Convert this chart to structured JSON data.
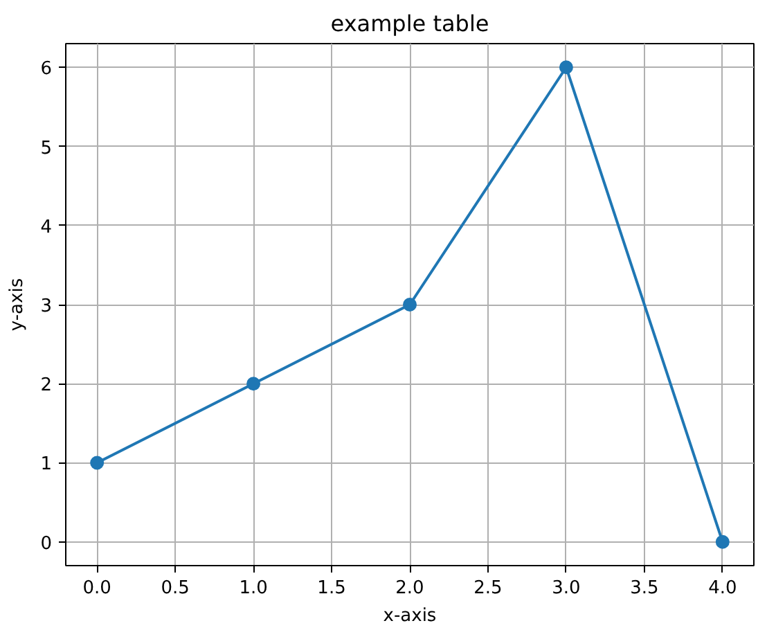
{
  "chart_data": {
    "type": "line",
    "title": "example table",
    "xlabel": "x-axis",
    "ylabel": "y-axis",
    "x": [
      0,
      1,
      2,
      3,
      4
    ],
    "series": [
      {
        "color": "#1f77b4",
        "values": [
          1,
          2,
          3,
          6,
          0
        ]
      }
    ],
    "xlim": [
      -0.2,
      4.2
    ],
    "ylim": [
      -0.3,
      6.3
    ],
    "xticks": [
      {
        "value": 0,
        "label": "0.0"
      },
      0.5,
      {
        "value": 1,
        "label": "1.0"
      },
      1.5,
      {
        "value": 2,
        "label": "2.0"
      },
      2.5,
      {
        "value": 3,
        "label": "3.0"
      },
      3.5,
      {
        "value": 4,
        "label": "4.0"
      }
    ],
    "yticks": [
      0,
      1,
      2,
      3,
      4,
      5,
      6
    ],
    "grid": true,
    "marker": "circle",
    "line_style": "solid"
  }
}
